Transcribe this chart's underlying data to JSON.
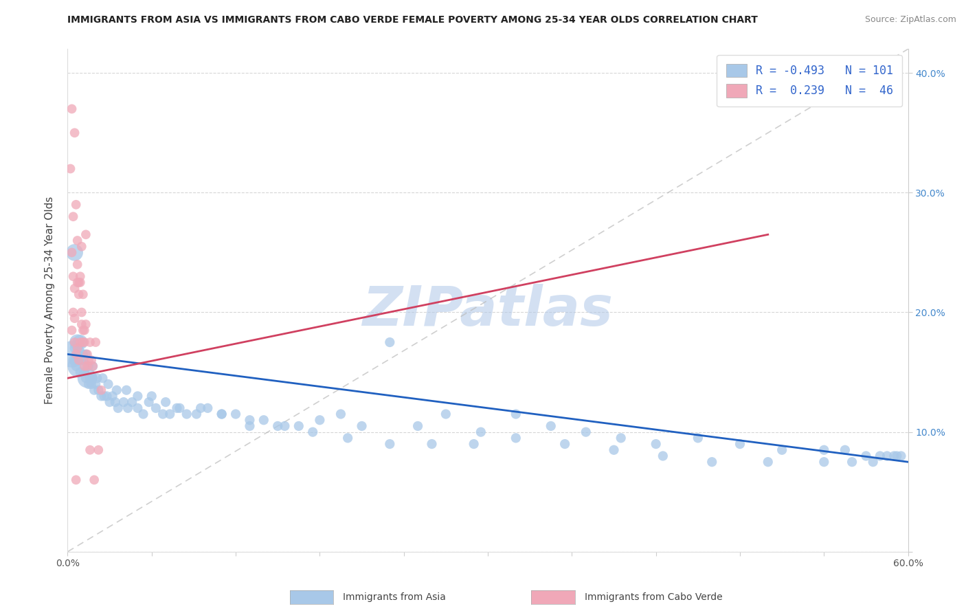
{
  "title": "IMMIGRANTS FROM ASIA VS IMMIGRANTS FROM CABO VERDE FEMALE POVERTY AMONG 25-34 YEAR OLDS CORRELATION CHART",
  "source": "Source: ZipAtlas.com",
  "ylabel": "Female Poverty Among 25-34 Year Olds",
  "xlim": [
    0,
    0.6
  ],
  "ylim": [
    0,
    0.42
  ],
  "xticks": [
    0.0,
    0.06,
    0.12,
    0.18,
    0.24,
    0.3,
    0.36,
    0.42,
    0.48,
    0.54,
    0.6
  ],
  "xtick_labels_shown": [
    "0.0%",
    "",
    "",
    "",
    "",
    "",
    "",
    "",
    "",
    "",
    "60.0%"
  ],
  "yticks": [
    0.0,
    0.1,
    0.2,
    0.3,
    0.4
  ],
  "ytick_labels_right": [
    "",
    "10.0%",
    "20.0%",
    "30.0%",
    "40.0%"
  ],
  "legend_blue_r": "R = -0.493",
  "legend_blue_n": "N = 101",
  "legend_pink_r": "R =  0.239",
  "legend_pink_n": "N =  46",
  "legend_label_blue": "Immigrants from Asia",
  "legend_label_pink": "Immigrants from Cabo Verde",
  "blue_color": "#a8c8e8",
  "pink_color": "#f0a8b8",
  "blue_line_color": "#2060c0",
  "pink_line_color": "#d04060",
  "diag_color": "#bbbbbb",
  "watermark": "ZIPatlas",
  "watermark_color_zip": "#b0c8e8",
  "watermark_color_atlas": "#8098b8",
  "blue_trendline_x0": 0.0,
  "blue_trendline_y0": 0.165,
  "blue_trendline_x1": 0.6,
  "blue_trendline_y1": 0.075,
  "pink_trendline_x0": 0.0,
  "pink_trendline_x1": 0.5,
  "pink_trendline_y0": 0.145,
  "pink_trendline_y1": 0.265,
  "asia_x": [
    0.003,
    0.004,
    0.005,
    0.006,
    0.007,
    0.008,
    0.009,
    0.01,
    0.012,
    0.013,
    0.014,
    0.015,
    0.016,
    0.017,
    0.018,
    0.019,
    0.02,
    0.022,
    0.024,
    0.026,
    0.028,
    0.03,
    0.032,
    0.034,
    0.036,
    0.04,
    0.043,
    0.046,
    0.05,
    0.054,
    0.058,
    0.063,
    0.068,
    0.073,
    0.078,
    0.085,
    0.092,
    0.1,
    0.11,
    0.12,
    0.13,
    0.14,
    0.15,
    0.165,
    0.18,
    0.195,
    0.21,
    0.23,
    0.25,
    0.27,
    0.295,
    0.32,
    0.345,
    0.37,
    0.395,
    0.42,
    0.45,
    0.48,
    0.51,
    0.54,
    0.555,
    0.57,
    0.58,
    0.59,
    0.595,
    0.005,
    0.007,
    0.009,
    0.011,
    0.013,
    0.015,
    0.018,
    0.021,
    0.025,
    0.029,
    0.035,
    0.042,
    0.05,
    0.06,
    0.07,
    0.08,
    0.095,
    0.11,
    0.13,
    0.155,
    0.175,
    0.2,
    0.23,
    0.26,
    0.29,
    0.32,
    0.355,
    0.39,
    0.425,
    0.46,
    0.5,
    0.54,
    0.56,
    0.575,
    0.585,
    0.592
  ],
  "asia_y": [
    0.165,
    0.16,
    0.17,
    0.155,
    0.165,
    0.155,
    0.15,
    0.16,
    0.15,
    0.145,
    0.145,
    0.14,
    0.145,
    0.14,
    0.145,
    0.135,
    0.14,
    0.135,
    0.13,
    0.13,
    0.13,
    0.125,
    0.13,
    0.125,
    0.12,
    0.125,
    0.12,
    0.125,
    0.12,
    0.115,
    0.125,
    0.12,
    0.115,
    0.115,
    0.12,
    0.115,
    0.115,
    0.12,
    0.115,
    0.115,
    0.105,
    0.11,
    0.105,
    0.105,
    0.11,
    0.115,
    0.105,
    0.175,
    0.105,
    0.115,
    0.1,
    0.115,
    0.105,
    0.1,
    0.095,
    0.09,
    0.095,
    0.09,
    0.085,
    0.085,
    0.085,
    0.08,
    0.08,
    0.08,
    0.08,
    0.25,
    0.175,
    0.175,
    0.165,
    0.165,
    0.155,
    0.155,
    0.145,
    0.145,
    0.14,
    0.135,
    0.135,
    0.13,
    0.13,
    0.125,
    0.12,
    0.12,
    0.115,
    0.11,
    0.105,
    0.1,
    0.095,
    0.09,
    0.09,
    0.09,
    0.095,
    0.09,
    0.085,
    0.08,
    0.075,
    0.075,
    0.075,
    0.075,
    0.075,
    0.08,
    0.08
  ],
  "asia_size_base": 30,
  "asia_large_indices": [
    0,
    5,
    10,
    65,
    66,
    67
  ],
  "asia_large_sizes": [
    220,
    160,
    120,
    90,
    80,
    70
  ],
  "cabo_x": [
    0.002,
    0.003,
    0.003,
    0.004,
    0.004,
    0.005,
    0.005,
    0.005,
    0.006,
    0.006,
    0.007,
    0.007,
    0.007,
    0.008,
    0.008,
    0.009,
    0.009,
    0.01,
    0.01,
    0.011,
    0.011,
    0.012,
    0.012,
    0.013,
    0.013,
    0.014,
    0.015,
    0.016,
    0.017,
    0.018,
    0.02,
    0.022,
    0.024,
    0.003,
    0.004,
    0.005,
    0.006,
    0.007,
    0.008,
    0.009,
    0.01,
    0.011,
    0.012,
    0.014,
    0.016,
    0.019
  ],
  "cabo_y": [
    0.32,
    0.25,
    0.37,
    0.28,
    0.2,
    0.35,
    0.22,
    0.175,
    0.29,
    0.06,
    0.26,
    0.225,
    0.17,
    0.225,
    0.16,
    0.225,
    0.175,
    0.255,
    0.19,
    0.215,
    0.175,
    0.185,
    0.155,
    0.265,
    0.19,
    0.165,
    0.16,
    0.175,
    0.16,
    0.155,
    0.175,
    0.085,
    0.135,
    0.185,
    0.23,
    0.195,
    0.165,
    0.24,
    0.215,
    0.23,
    0.2,
    0.185,
    0.175,
    0.155,
    0.085,
    0.06
  ],
  "cabo_size_base": 28
}
